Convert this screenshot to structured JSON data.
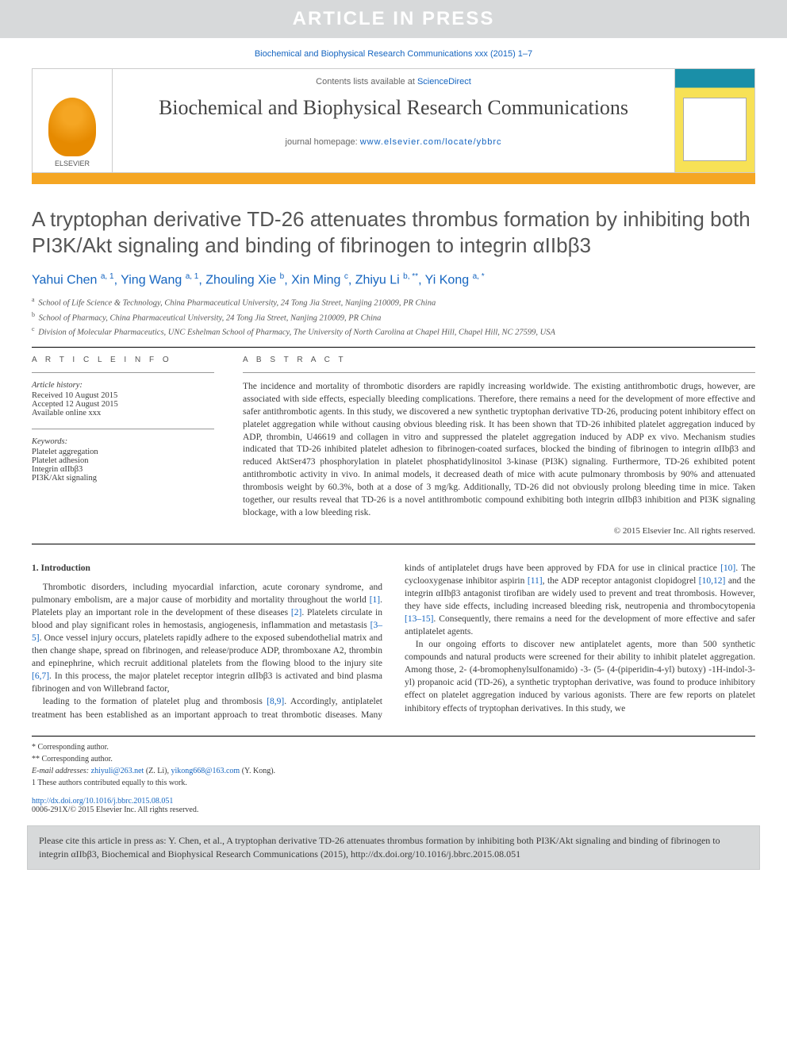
{
  "banner_text": "ARTICLE IN PRESS",
  "journal_ref": "Biochemical and Biophysical Research Communications xxx (2015) 1–7",
  "masthead": {
    "contents_prefix": "Contents lists available at ",
    "contents_link": "ScienceDirect",
    "journal_title": "Biochemical and Biophysical Research Communications",
    "homepage_prefix": "journal homepage: ",
    "homepage_url": "www.elsevier.com/locate/ybbrc",
    "publisher": "ELSEVIER"
  },
  "title": "A tryptophan derivative TD-26 attenuates thrombus formation by inhibiting both PI3K/Akt signaling and binding of fibrinogen to integrin αIIbβ3",
  "authors_html": "Yahui Chen <sup>a, 1</sup>, Ying Wang <sup>a, 1</sup>, Zhouling Xie <sup>b</sup>, Xin Ming <sup>c</sup>, Zhiyu Li <sup>b, **</sup>, Yi Kong <sup>a, *</sup>",
  "affiliations": [
    {
      "sup": "a",
      "text": "School of Life Science & Technology, China Pharmaceutical University, 24 Tong Jia Street, Nanjing 210009, PR China"
    },
    {
      "sup": "b",
      "text": "School of Pharmacy, China Pharmaceutical University, 24 Tong Jia Street, Nanjing 210009, PR China"
    },
    {
      "sup": "c",
      "text": "Division of Molecular Pharmaceutics, UNC Eshelman School of Pharmacy, The University of North Carolina at Chapel Hill, Chapel Hill, NC 27599, USA"
    }
  ],
  "article_info": {
    "head": "A R T I C L E   I N F O",
    "history_label": "Article history:",
    "received": "Received 10 August 2015",
    "accepted": "Accepted 12 August 2015",
    "online": "Available online xxx",
    "keywords_label": "Keywords:",
    "keywords": [
      "Platelet aggregation",
      "Platelet adhesion",
      "Integrin αIIbβ3",
      "PI3K/Akt signaling"
    ]
  },
  "abstract": {
    "head": "A B S T R A C T",
    "body": "The incidence and mortality of thrombotic disorders are rapidly increasing worldwide. The existing antithrombotic drugs, however, are associated with side effects, especially bleeding complications. Therefore, there remains a need for the development of more effective and safer antithrombotic agents. In this study, we discovered a new synthetic tryptophan derivative TD-26, producing potent inhibitory effect on platelet aggregation while without causing obvious bleeding risk. It has been shown that TD-26 inhibited platelet aggregation induced by ADP, thrombin, U46619 and collagen in vitro and suppressed the platelet aggregation induced by ADP ex vivo. Mechanism studies indicated that TD-26 inhibited platelet adhesion to fibrinogen-coated surfaces, blocked the binding of fibrinogen to integrin αIIbβ3 and reduced AktSer473 phosphorylation in platelet phosphatidylinositol 3-kinase (PI3K) signaling. Furthermore, TD-26 exhibited potent antithrombotic activity in vivo. In animal models, it decreased death of mice with acute pulmonary thrombosis by 90% and attenuated thrombosis weight by 60.3%, both at a dose of 3 mg/kg. Additionally, TD-26 did not obviously prolong bleeding time in mice. Taken together, our results reveal that TD-26 is a novel antithrombotic compound exhibiting both integrin αIIbβ3 inhibition and PI3K signaling blockage, with a low bleeding risk.",
    "copyright": "© 2015 Elsevier Inc. All rights reserved."
  },
  "intro": {
    "number": "1.",
    "heading": "Introduction",
    "p1_before": "Thrombotic disorders, including myocardial infarction, acute coronary syndrome, and pulmonary embolism, are a major cause of morbidity and mortality throughout the world ",
    "r1": "[1]",
    "p1_mid": ". Platelets play an important role in the development of these diseases ",
    "r2": "[2]",
    "p1_mid2": ". Platelets circulate in blood and play significant roles in hemostasis, angiogenesis, inflammation and metastasis ",
    "r3": "[3–5]",
    "p1_mid3": ". Once vessel injury occurs, platelets rapidly adhere to the exposed subendothelial matrix and then change shape, spread on fibrinogen, and release/produce ADP, thromboxane A2, thrombin and epinephrine, which recruit additional platelets from the flowing blood to the injury site ",
    "r4": "[6,7]",
    "p1_end": ". In this process, the major platelet receptor integrin αIIbβ3 is activated and bind plasma fibrinogen and von Willebrand factor,",
    "p2_before": "leading to the formation of platelet plug and thrombosis ",
    "r5": "[8,9]",
    "p2_mid": ". Accordingly, antiplatelet treatment has been established as an important approach to treat thrombotic diseases. Many kinds of antiplatelet drugs have been approved by FDA for use in clinical practice ",
    "r6": "[10]",
    "p2_mid2": ". The cyclooxygenase inhibitor aspirin ",
    "r7": "[11]",
    "p2_mid3": ", the ADP receptor antagonist clopidogrel ",
    "r8": "[10,12]",
    "p2_mid4": " and the integrin αIIbβ3 antagonist tirofiban are widely used to prevent and treat thrombosis. However, they have side effects, including increased bleeding risk, neutropenia and thrombocytopenia ",
    "r9": "[13–15]",
    "p2_end": ". Consequently, there remains a need for the development of more effective and safer antiplatelet agents.",
    "p3": "In our ongoing efforts to discover new antiplatelet agents, more than 500 synthetic compounds and natural products were screened for their ability to inhibit platelet aggregation. Among those, 2- (4-bromophenylsulfonamido) -3- (5- (4-(piperidin-4-yl) butoxy) -1H-indol-3-yl) propanoic acid (TD-26), a synthetic tryptophan derivative, was found to produce inhibitory effect on platelet aggregation induced by various agonists. There are few reports on platelet inhibitory effects of tryptophan derivatives. In this study, we"
  },
  "footnotes": {
    "corr1": "* Corresponding author.",
    "corr2": "** Corresponding author.",
    "email_label": "E-mail addresses:",
    "email1": "zhiyuli@263.net",
    "email1_who": " (Z. Li), ",
    "email2": "yikong668@163.com",
    "email2_who": " (Y. Kong).",
    "equal": "1  These authors contributed equally to this work."
  },
  "doi": {
    "url": "http://dx.doi.org/10.1016/j.bbrc.2015.08.051",
    "issn_line": "0006-291X/© 2015 Elsevier Inc. All rights reserved."
  },
  "cite_box": "Please cite this article in press as: Y. Chen, et al., A tryptophan derivative TD-26 attenuates thrombus formation by inhibiting both PI3K/Akt signaling and binding of fibrinogen to integrin αIIbβ3, Biochemical and Biophysical Research Communications (2015), http://dx.doi.org/10.1016/j.bbrc.2015.08.051",
  "colors": {
    "banner_bg": "#d7d9da",
    "link": "#1565c0",
    "accent_bar": "#f5a623"
  }
}
